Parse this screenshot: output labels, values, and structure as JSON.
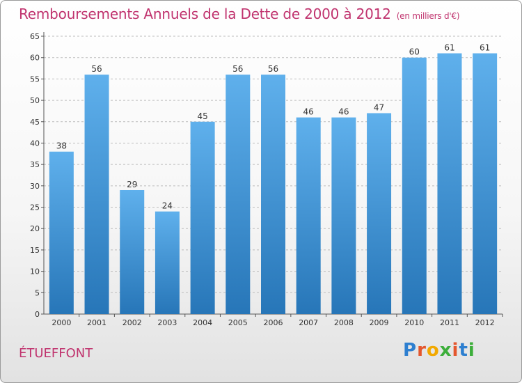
{
  "header": {
    "title": "Remboursements Annuels de la Dette de 2000 à 2012",
    "subtitle": "(en milliers d'€)"
  },
  "footer": {
    "commune": "ÉTUEFFONT",
    "logo": "Proxiti"
  },
  "colors": {
    "accent": "#c0336e",
    "bar_top": "#5dade9",
    "bar_bottom": "#2a7bbd"
  },
  "chart_data": {
    "type": "bar",
    "title": "Remboursements Annuels de la Dette de 2000 à 2012",
    "subtitle": "(en milliers d'€)",
    "categories": [
      "2000",
      "2001",
      "2002",
      "2003",
      "2004",
      "2005",
      "2006",
      "2007",
      "2008",
      "2009",
      "2010",
      "2011",
      "2012"
    ],
    "values": [
      38,
      56,
      29,
      24,
      45,
      56,
      56,
      46,
      46,
      47,
      60,
      61,
      61
    ],
    "ylim": [
      0,
      65
    ],
    "yticks": [
      0,
      5,
      10,
      15,
      20,
      25,
      30,
      35,
      40,
      45,
      50,
      55,
      60,
      65
    ],
    "grid": true,
    "legend": "none"
  }
}
